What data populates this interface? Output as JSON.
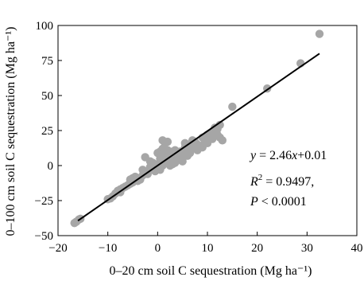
{
  "chart_data": {
    "type": "scatter",
    "xlabel": "0–20 cm soil C sequestration (Mg ha⁻¹)",
    "ylabel": "0–100 cm soil C sequestration (Mg ha⁻¹)",
    "xlim": [
      -20,
      40
    ],
    "ylim": [
      -50,
      100
    ],
    "x_ticks": [
      "−20",
      "−10",
      "0",
      "10",
      "20",
      "30",
      "40"
    ],
    "y_ticks": [
      "100",
      "75",
      "50",
      "25",
      "0",
      "−25",
      "−50"
    ],
    "x_tick_values": [
      -20,
      -10,
      0,
      10,
      20,
      30,
      40
    ],
    "y_tick_values": [
      100,
      75,
      50,
      25,
      0,
      -25,
      -50
    ],
    "grid": false,
    "legend": "none",
    "point_color": "#a6a6a6",
    "line_color": "#000000",
    "points": [
      [
        -16.7,
        -41
      ],
      [
        -16.3,
        -40
      ],
      [
        -15.8,
        -38.5
      ],
      [
        -15.5,
        -38
      ],
      [
        -10,
        -24
      ],
      [
        -9.5,
        -23.5
      ],
      [
        -9,
        -22
      ],
      [
        -8.5,
        -20
      ],
      [
        -8,
        -18
      ],
      [
        -7.5,
        -17
      ],
      [
        -7,
        -16
      ],
      [
        -7.5,
        -19
      ],
      [
        -6.5,
        -15
      ],
      [
        -6,
        -14
      ],
      [
        -5.5,
        -13
      ],
      [
        -5,
        -12
      ],
      [
        -5.5,
        -10
      ],
      [
        -5,
        -9
      ],
      [
        -4.5,
        -8
      ],
      [
        -4,
        -9
      ],
      [
        -3.5,
        -10
      ],
      [
        -4,
        -11
      ],
      [
        -3,
        -7
      ],
      [
        -2.5,
        -5
      ],
      [
        -2,
        -4
      ],
      [
        -3,
        -3
      ],
      [
        -2,
        -6
      ],
      [
        -2.5,
        6
      ],
      [
        -1.5,
        3
      ],
      [
        -1,
        2
      ],
      [
        -1.5,
        -1
      ],
      [
        -1,
        -2
      ],
      [
        -0.5,
        0
      ],
      [
        -0.5,
        -4
      ],
      [
        0,
        1
      ],
      [
        0,
        9
      ],
      [
        0.5,
        10
      ],
      [
        0.5,
        5
      ],
      [
        0.5,
        2
      ],
      [
        0,
        -2
      ],
      [
        0.5,
        -3
      ],
      [
        1,
        12
      ],
      [
        1,
        8
      ],
      [
        1,
        5
      ],
      [
        1,
        0
      ],
      [
        1.5,
        3
      ],
      [
        1.5,
        7
      ],
      [
        1.5,
        10
      ],
      [
        1,
        18
      ],
      [
        1.5,
        16
      ],
      [
        2,
        17
      ],
      [
        2,
        11
      ],
      [
        2,
        6
      ],
      [
        2,
        2
      ],
      [
        2.5,
        0
      ],
      [
        2.5,
        4
      ],
      [
        2.5,
        8
      ],
      [
        3,
        10
      ],
      [
        3,
        6
      ],
      [
        3,
        3
      ],
      [
        3,
        1
      ],
      [
        3.5,
        7
      ],
      [
        3.5,
        2
      ],
      [
        3.5,
        11
      ],
      [
        4,
        4
      ],
      [
        4,
        8
      ],
      [
        4.5,
        6
      ],
      [
        4.5,
        10
      ],
      [
        5,
        5
      ],
      [
        5,
        9
      ],
      [
        5,
        3
      ],
      [
        5.5,
        13
      ],
      [
        5.5,
        16
      ],
      [
        6,
        11
      ],
      [
        6,
        7
      ],
      [
        6.5,
        9
      ],
      [
        6.5,
        14
      ],
      [
        7,
        18
      ],
      [
        7,
        12
      ],
      [
        7.5,
        17
      ],
      [
        8,
        15
      ],
      [
        8,
        11
      ],
      [
        8.5,
        14
      ],
      [
        9,
        20
      ],
      [
        9,
        13
      ],
      [
        9.5,
        17
      ],
      [
        10,
        16
      ],
      [
        10,
        22
      ],
      [
        10.5,
        21
      ],
      [
        11,
        24
      ],
      [
        11,
        19
      ],
      [
        11.5,
        27
      ],
      [
        12,
        22
      ],
      [
        12,
        26
      ],
      [
        12.5,
        29
      ],
      [
        12.5,
        20
      ],
      [
        13,
        18
      ],
      [
        15,
        42
      ],
      [
        22,
        55
      ],
      [
        28.7,
        73
      ],
      [
        32.5,
        94
      ]
    ],
    "fit_line": {
      "x": [
        -16,
        32.5
      ],
      "y": [
        -39.35,
        79.96
      ]
    },
    "annotations": {
      "equation": "y = 2.46x+0.01",
      "r2_prefix": "R",
      "r2_sup": "2",
      "r2_value": " = 0.9497,",
      "p_prefix": "P",
      "p_value": " < 0.0001"
    }
  }
}
